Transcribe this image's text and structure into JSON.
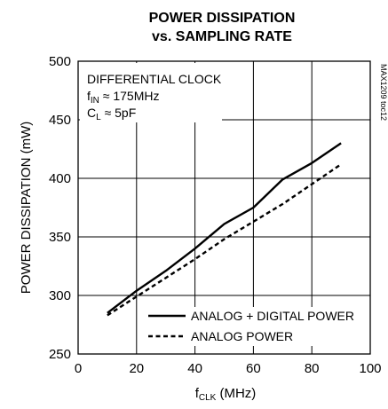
{
  "chart_data": {
    "type": "line",
    "title_lines": [
      "POWER DISSIPATION",
      "vs. SAMPLING RATE"
    ],
    "xlabel": {
      "main": "f",
      "sub": "CLK",
      "unit": " (MHz)"
    },
    "ylabel": "POWER DISSIPATION (mW)",
    "xlim": [
      0,
      100
    ],
    "ylim": [
      250,
      500
    ],
    "xticks": [
      "0",
      "20",
      "40",
      "60",
      "80",
      "100"
    ],
    "yticks": [
      "250",
      "300",
      "350",
      "400",
      "450",
      "500"
    ],
    "grid": true,
    "annotations": [
      {
        "text": "DIFFERENTIAL CLOCK"
      },
      {
        "main": "f",
        "sub": "IN",
        "rest": " ≈ 175MHz"
      },
      {
        "main": "C",
        "sub": "L",
        "rest": " ≈ 5pF"
      }
    ],
    "side_label": "MAX1209 toc12",
    "legend_position": "bottom-right",
    "series": [
      {
        "name": "ANALOG + DIGITAL POWER",
        "style": "solid",
        "x": [
          10,
          20,
          30,
          40,
          50,
          60,
          70,
          80,
          90
        ],
        "y": [
          285,
          304,
          321,
          340,
          361,
          375,
          399,
          413,
          430
        ]
      },
      {
        "name": "ANALOG POWER",
        "style": "dashed",
        "x": [
          10,
          20,
          30,
          40,
          50,
          60,
          70,
          80,
          90
        ],
        "y": [
          283,
          299,
          315,
          331,
          348,
          363,
          378,
          395,
          412
        ]
      }
    ]
  }
}
